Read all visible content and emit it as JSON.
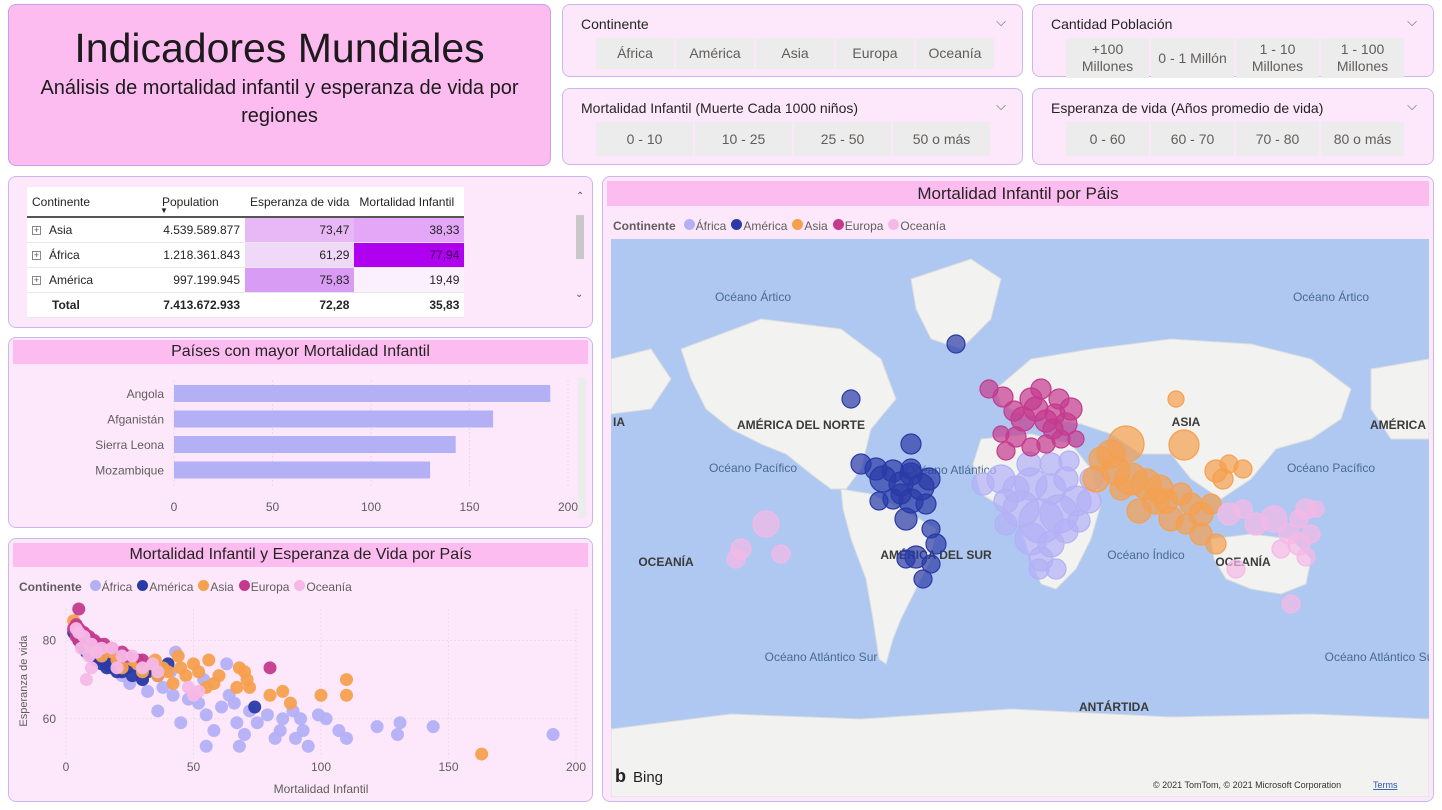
{
  "title": "Indicadores Mundiales",
  "subtitle": "Análisis de mortalidad infantil y esperanza de vida por regiones",
  "slicers": {
    "continente": {
      "label": "Continente",
      "options": [
        "África",
        "América",
        "Asia",
        "Europa",
        "Oceanía"
      ]
    },
    "poblacion": {
      "label": "Cantidad Población",
      "options": [
        "+100 Millones",
        "0 - 1 Millón",
        "1 - 10 Millones",
        "1 - 100 Millones"
      ]
    },
    "mortalidad": {
      "label": "Mortalidad Infantil (Muerte Cada 1000 niños)",
      "options": [
        "0 - 10",
        "10 - 25",
        "25 - 50",
        "50 o más"
      ]
    },
    "esperanza": {
      "label": "Esperanza de vida (Años promedio de vida)",
      "options": [
        "0 - 60",
        "60 - 70",
        "70 - 80",
        "80 o más"
      ]
    }
  },
  "matrix": {
    "headers": [
      "Continente",
      "Population",
      "Esperanza de vida",
      "Mortalidad Infantil"
    ],
    "rows": [
      {
        "name": "Asia",
        "population": "4.539.589.877",
        "esperanza": "73,47",
        "mortalidad": "38,33"
      },
      {
        "name": "África",
        "population": "1.218.361.843",
        "esperanza": "61,29",
        "mortalidad": "77,94"
      },
      {
        "name": "América",
        "population": "997.199.945",
        "esperanza": "75,83",
        "mortalidad": "19,49"
      }
    ],
    "total": {
      "name": "Total",
      "population": "7.413.672.933",
      "esperanza": "72,28",
      "mortalidad": "35,83"
    }
  },
  "legend": {
    "title": "Continente",
    "items": [
      "África",
      "América",
      "Asia",
      "Europa",
      "Oceanía"
    ]
  },
  "colors": {
    "Africa": "#b3b0f6",
    "America": "#2a3aa6",
    "Asia": "#f5a04e",
    "Europa": "#c43a8e",
    "Oceania": "#f6b8e6",
    "accent": "#fcbcf0"
  },
  "chart_data": [
    {
      "type": "bar",
      "title": "Países con mayor Mortalidad Infantil",
      "orientation": "horizontal",
      "categories": [
        "Angola",
        "Afganistán",
        "Sierra Leona",
        "Mozambique"
      ],
      "values": [
        191,
        162,
        143,
        130
      ],
      "xlim": [
        0,
        200
      ],
      "xticks": [
        0,
        50,
        100,
        150,
        200
      ],
      "color": "#b3b0f6"
    },
    {
      "type": "scatter",
      "title": "Mortalidad Infantil y Esperanza de Vida por País",
      "xlabel": "Mortalidad Infantil",
      "ylabel": "Esperanza de vida",
      "xlim": [
        0,
        200
      ],
      "ylim": [
        50,
        88
      ],
      "xticks": [
        0,
        50,
        100,
        150,
        200
      ],
      "yticks": [
        60,
        80
      ],
      "series": [
        {
          "name": "África",
          "points": [
            [
              191,
              56
            ],
            [
              144,
              58
            ],
            [
              131,
              59
            ],
            [
              130,
              56
            ],
            [
              122,
              58
            ],
            [
              110,
              55
            ],
            [
              107,
              57
            ],
            [
              102,
              60
            ],
            [
              99,
              61
            ],
            [
              95,
              53
            ],
            [
              93,
              57
            ],
            [
              90,
              55
            ],
            [
              92,
              60
            ],
            [
              89,
              62
            ],
            [
              85,
              60
            ],
            [
              84,
              57
            ],
            [
              82,
              55
            ],
            [
              79,
              61
            ],
            [
              75,
              59
            ],
            [
              72,
              62
            ],
            [
              70,
              56
            ],
            [
              68,
              53
            ],
            [
              67,
              59
            ],
            [
              66,
              64
            ],
            [
              64,
              66
            ],
            [
              61,
              63
            ],
            [
              58,
              57
            ],
            [
              55,
              53
            ],
            [
              55,
              61
            ],
            [
              52,
              64
            ],
            [
              48,
              65
            ],
            [
              45,
              59
            ],
            [
              42,
              66
            ],
            [
              38,
              68
            ],
            [
              36,
              62
            ],
            [
              32,
              67
            ],
            [
              30,
              70
            ],
            [
              28,
              72
            ],
            [
              25,
              69
            ],
            [
              22,
              71
            ],
            [
              20,
              74
            ],
            [
              18,
              75
            ],
            [
              41,
              72
            ],
            [
              43,
              77
            ],
            [
              63,
              74
            ],
            [
              54,
              70
            ]
          ]
        },
        {
          "name": "América",
          "points": [
            [
              3,
              82
            ],
            [
              5,
              80
            ],
            [
              6,
              79
            ],
            [
              7,
              78
            ],
            [
              8,
              77
            ],
            [
              9,
              77
            ],
            [
              10,
              76
            ],
            [
              11,
              76
            ],
            [
              12,
              75
            ],
            [
              13,
              76
            ],
            [
              14,
              74
            ],
            [
              15,
              75
            ],
            [
              16,
              73
            ],
            [
              17,
              74
            ],
            [
              18,
              73
            ],
            [
              19,
              73
            ],
            [
              20,
              72
            ],
            [
              21,
              74
            ],
            [
              22,
              72
            ],
            [
              24,
              73
            ],
            [
              26,
              71
            ],
            [
              28,
              75
            ],
            [
              30,
              70
            ],
            [
              32,
              72
            ],
            [
              34,
              73
            ],
            [
              36,
              71
            ],
            [
              40,
              74
            ],
            [
              74,
              63
            ]
          ]
        },
        {
          "name": "Asia",
          "points": [
            [
              163,
              51
            ],
            [
              110,
              70
            ],
            [
              110,
              66
            ],
            [
              100,
              66
            ],
            [
              88,
              64
            ],
            [
              85,
              67
            ],
            [
              80,
              66
            ],
            [
              72,
              68
            ],
            [
              71,
              70
            ],
            [
              70,
              72
            ],
            [
              68,
              73
            ],
            [
              67,
              68
            ],
            [
              60,
              71
            ],
            [
              58,
              69
            ],
            [
              56,
              75
            ],
            [
              52,
              72
            ],
            [
              55,
              68
            ],
            [
              50,
              74
            ],
            [
              47,
              71
            ],
            [
              45,
              73
            ],
            [
              44,
              76
            ],
            [
              42,
              69
            ],
            [
              40,
              72
            ],
            [
              38,
              73
            ],
            [
              36,
              71
            ],
            [
              33,
              74
            ],
            [
              30,
              72
            ],
            [
              28,
              74
            ],
            [
              26,
              75
            ],
            [
              24,
              76
            ],
            [
              22,
              73
            ],
            [
              20,
              75
            ],
            [
              18,
              77
            ],
            [
              16,
              78
            ],
            [
              14,
              76
            ],
            [
              12,
              77
            ],
            [
              10,
              78
            ],
            [
              9,
              79
            ],
            [
              8,
              80
            ],
            [
              7,
              81
            ],
            [
              6,
              82
            ],
            [
              5,
              83
            ],
            [
              4,
              84
            ],
            [
              3,
              85
            ],
            [
              35,
              75
            ]
          ]
        },
        {
          "name": "Europa",
          "points": [
            [
              80,
              73
            ],
            [
              30,
              75
            ],
            [
              24,
              76
            ],
            [
              22,
              77
            ],
            [
              18,
              78
            ],
            [
              15,
              79
            ],
            [
              13,
              79
            ],
            [
              11,
              80
            ],
            [
              10,
              80
            ],
            [
              9,
              81
            ],
            [
              8,
              81
            ],
            [
              7,
              82
            ],
            [
              6,
              82
            ],
            [
              5,
              83
            ],
            [
              5,
              80
            ],
            [
              4,
              84
            ],
            [
              3,
              83
            ],
            [
              4,
              81
            ],
            [
              5,
              88
            ]
          ]
        },
        {
          "name": "Oceanía",
          "points": [
            [
              50,
              66
            ],
            [
              48,
              68
            ],
            [
              52,
              67
            ],
            [
              36,
              72
            ],
            [
              34,
              74
            ],
            [
              30,
              73
            ],
            [
              26,
              76
            ],
            [
              22,
              76
            ],
            [
              18,
              78
            ],
            [
              14,
              78
            ],
            [
              12,
              77
            ],
            [
              10,
              79
            ],
            [
              9,
              76
            ],
            [
              7,
              81
            ],
            [
              5,
              82
            ],
            [
              4,
              83
            ],
            [
              6,
              78
            ],
            [
              8,
              70
            ],
            [
              10,
              73
            ],
            [
              20,
              73
            ]
          ]
        }
      ]
    },
    {
      "type": "map-bubble",
      "title": "Mortalidad Infantil por Páis",
      "regions": [
        "AMÉRICA DEL NORTE",
        "AMÉRICA DEL SUR",
        "ASIA",
        "OCEANÍA",
        "ANTÁRTIDA",
        "AMÉRICA",
        "IA"
      ],
      "oceans": [
        "Océano Ártico",
        "Océano Pacífico",
        "Océano Atlántico",
        "Océano Índico",
        "Océano Atlántico Sur"
      ],
      "attribution": "© 2021 TomTom, © 2021 Microsoft Corporation",
      "terms": "Terms",
      "brand": "Bing"
    }
  ]
}
